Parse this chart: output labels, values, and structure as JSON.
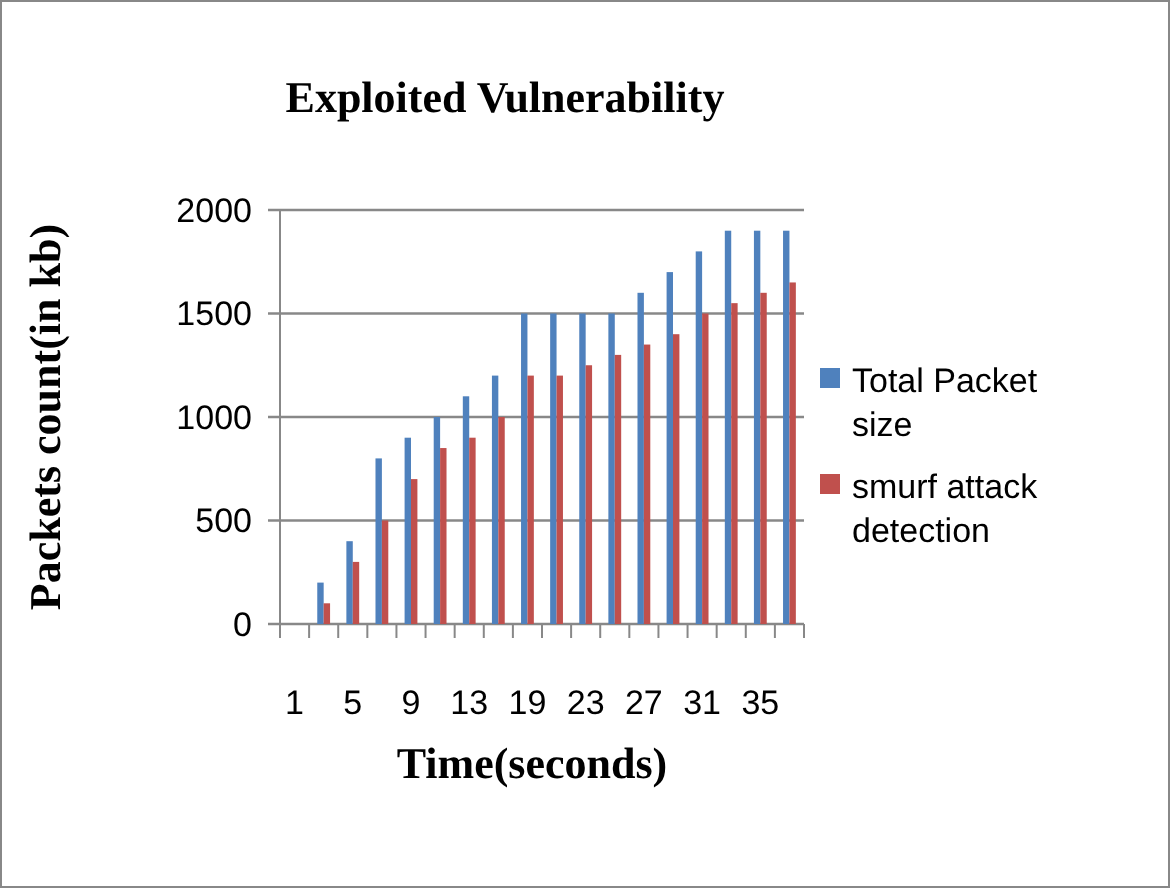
{
  "chart_data": {
    "type": "bar",
    "title": "Exploited Vulnerability",
    "xlabel": "Time(seconds)",
    "ylabel": "Packets count(in kb)",
    "categories": [
      "1",
      null,
      "5",
      null,
      "9",
      null,
      "13",
      null,
      "19",
      null,
      "23",
      null,
      "27",
      null,
      "31",
      null,
      "35",
      null
    ],
    "series": [
      {
        "name": "Total Packet size",
        "color": "#4f81bd",
        "values": [
          null,
          200,
          400,
          800,
          900,
          1000,
          1100,
          1200,
          1500,
          1500,
          1500,
          1500,
          1600,
          1700,
          1800,
          1900,
          1900,
          1900
        ]
      },
      {
        "name": "smurf attack detection",
        "color": "#c0504d",
        "values": [
          null,
          100,
          300,
          500,
          700,
          850,
          900,
          1000,
          1200,
          1200,
          1250,
          1300,
          1350,
          1400,
          1500,
          1550,
          1600,
          1650
        ]
      }
    ],
    "ylim": [
      0,
      2000
    ],
    "yticks": [
      0,
      500,
      1000,
      1500,
      2000
    ],
    "grid": "y",
    "legend": "right"
  }
}
